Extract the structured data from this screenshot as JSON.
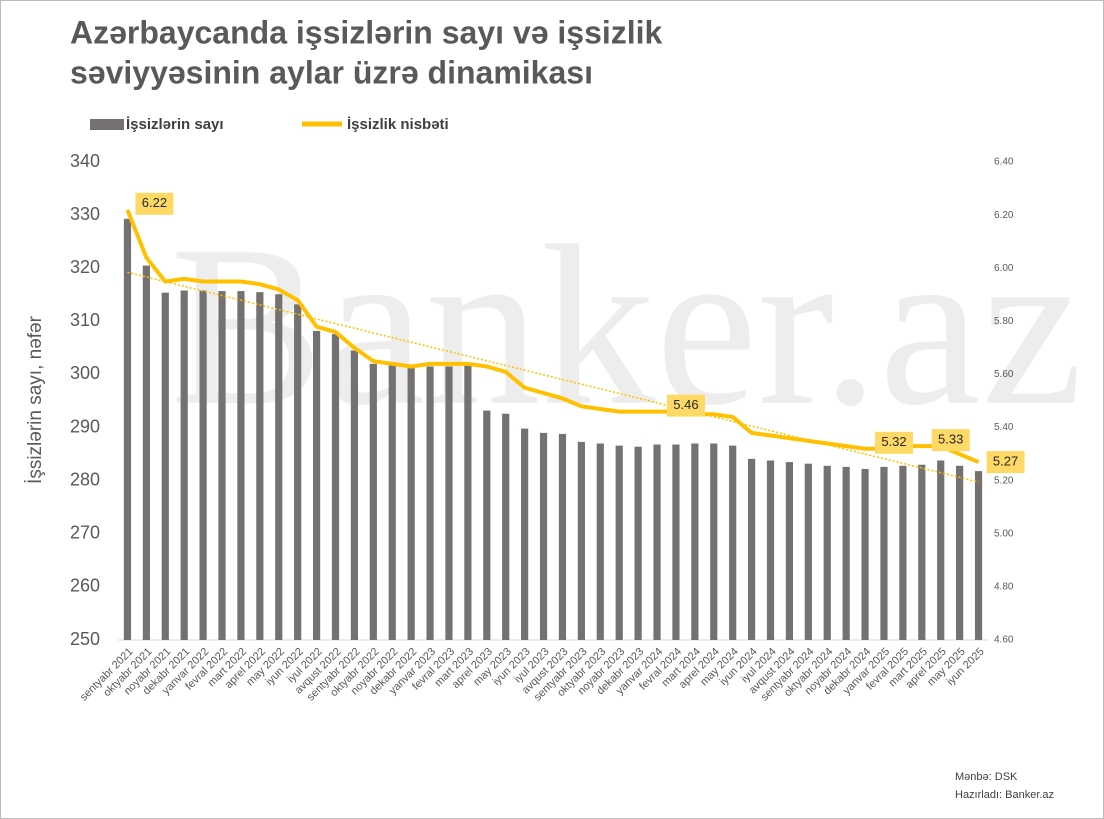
{
  "chart_data": {
    "type": "bar-line",
    "title_lines": [
      "Azərbaycanda işsizlərin sayı və işsizlik",
      "səviyyəsinin aylar üzrə dinamikası"
    ],
    "y_axis_label": "İşsizlərin sayı, nəfər",
    "watermark": "Banker.az",
    "source_lines": [
      "Mənbə:  DSK",
      "Hazırladı: Banker.az"
    ],
    "categories": [
      "sentyabr 2021",
      "oktyabr 2021",
      "noyabr 2021",
      "dekabr 2021",
      "yanvar 2022",
      "fevral 2022",
      "mart 2022",
      "aprel 2022",
      "may 2022",
      "iyun 2022",
      "iyul 2022",
      "avqust 2022",
      "sentyabr 2022",
      "oktyabr 2022",
      "noyabr 2022",
      "dekabr 2022",
      "yanvar 2023",
      "fevral 2023",
      "mart 2023",
      "aprel 2023",
      "may 2023",
      "iyun 2023",
      "iyul 2023",
      "avqust 2023",
      "sentyabr 2023",
      "oktyabr 2023",
      "noyabr 2023",
      "dekabr 2023",
      "yanvar 2024",
      "fevral 2024",
      "mart 2024",
      "aprel 2024",
      "may 2024",
      "iyun 2024",
      "iyul 2024",
      "avqust 2024",
      "sentyabr 2024",
      "oktyabr 2024",
      "noyabr 2024",
      "dekabr 2024",
      "yanvar 2025",
      "fevral 2025",
      "mart 2025",
      "aprel 2025",
      "may 2025",
      "iyun 2025"
    ],
    "series": [
      {
        "name": "İşsizlərin sayı",
        "type": "bar",
        "color": "#767171",
        "values": [
          329.3,
          320.5,
          315.4,
          315.8,
          315.8,
          315.7,
          315.7,
          315.5,
          315.1,
          313.2,
          308.2,
          307.6,
          304.5,
          302.0,
          301.8,
          301.2,
          301.5,
          301.5,
          302.0,
          293.2,
          292.6,
          289.8,
          289.0,
          288.8,
          287.3,
          287.0,
          286.6,
          286.4,
          286.8,
          286.8,
          287.0,
          287.0,
          286.6,
          284.1,
          283.8,
          283.5,
          283.2,
          282.8,
          282.6,
          282.2,
          282.6,
          282.8,
          283.0,
          283.8,
          282.8,
          281.8
        ]
      },
      {
        "name": "İşsizlik nisbəti",
        "type": "line",
        "axis": "y2",
        "color": "#ffc000",
        "trendline": true,
        "values": [
          6.22,
          6.04,
          5.95,
          5.96,
          5.95,
          5.95,
          5.95,
          5.94,
          5.92,
          5.88,
          5.78,
          5.76,
          5.7,
          5.65,
          5.64,
          5.63,
          5.64,
          5.64,
          5.64,
          5.63,
          5.61,
          5.55,
          5.53,
          5.51,
          5.48,
          5.47,
          5.46,
          5.46,
          5.46,
          5.46,
          5.45,
          5.45,
          5.44,
          5.38,
          5.37,
          5.36,
          5.35,
          5.34,
          5.33,
          5.32,
          5.32,
          5.33,
          5.33,
          5.33,
          5.3,
          5.27
        ],
        "value_labels": [
          "6.22",
          null,
          null,
          null,
          null,
          null,
          null,
          null,
          null,
          null,
          null,
          null,
          null,
          null,
          null,
          null,
          null,
          null,
          null,
          null,
          null,
          null,
          null,
          null,
          null,
          null,
          null,
          null,
          null,
          "5.46",
          null,
          null,
          null,
          null,
          null,
          null,
          null,
          null,
          null,
          null,
          "5.32",
          null,
          null,
          "5.33",
          null,
          "5.27"
        ]
      }
    ],
    "ylim": [
      250,
      340
    ],
    "yticks": [
      250,
      260,
      270,
      280,
      290,
      300,
      310,
      320,
      330,
      340
    ],
    "y2lim": [
      4.6,
      6.4
    ],
    "y2ticks": [
      {
        "value": 4.6,
        "label": "4.60"
      },
      {
        "value": 4.8,
        "label": "4.80"
      },
      {
        "value": 5,
        "label": "5.00"
      },
      {
        "value": 5.2,
        "label": "5.20"
      },
      {
        "value": 5.4,
        "label": "5.40"
      },
      {
        "value": 5.6,
        "label": "5.60"
      },
      {
        "value": 5.8,
        "label": "5.80"
      },
      {
        "value": 6,
        "label": "6.00"
      },
      {
        "value": 6.2,
        "label": "6.20"
      },
      {
        "value": 6.4,
        "label": "6.40"
      }
    ],
    "grid": false
  }
}
